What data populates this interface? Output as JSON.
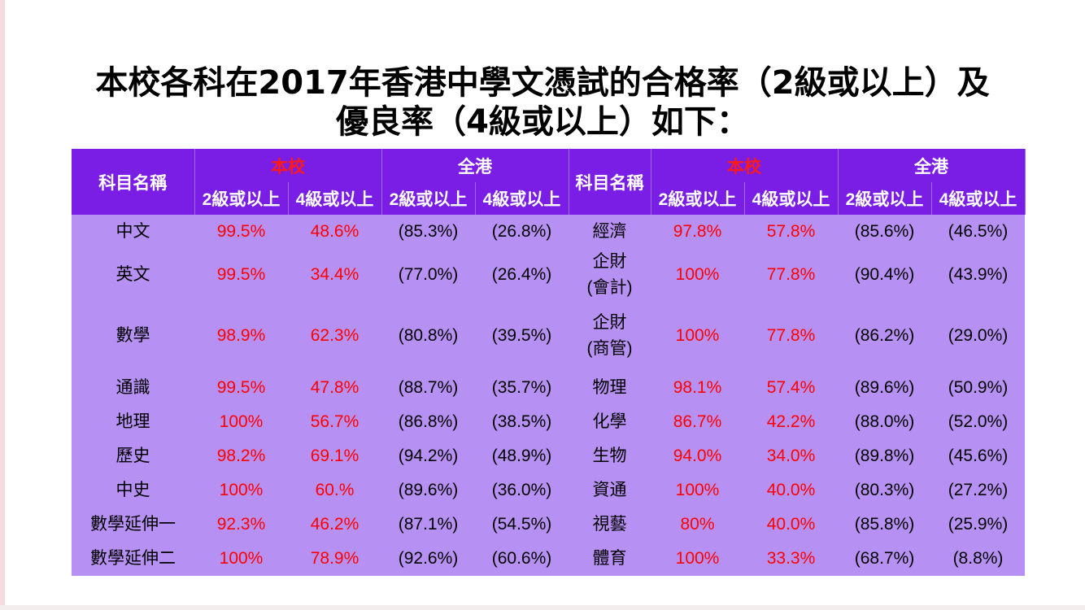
{
  "title": {
    "line1": "本校各科在2017年香港中學文憑試的合格率（2級或以上）及",
    "line2": "優良率（4級或以上）如下："
  },
  "table": {
    "subject_header": "科目名稱",
    "school_header": "本校",
    "hk_header": "全港",
    "level2_header": "2級或以上",
    "level4_header": "4級或以上",
    "rows": [
      {
        "s1": [
          "中文"
        ],
        "a": "99.5%",
        "b": "48.6%",
        "c": "(85.3%)",
        "d": "(26.8%)",
        "s2": [
          "經濟"
        ],
        "e": "97.8%",
        "f": "57.8%",
        "g": "(85.6%)",
        "h": "(46.5%)"
      },
      {
        "s1": [
          "英文"
        ],
        "a": "99.5%",
        "b": "34.4%",
        "c": "(77.0%)",
        "d": "(26.4%)",
        "s2": [
          "企財",
          "(會計)"
        ],
        "e": "100%",
        "f": "77.8%",
        "g": "(90.4%)",
        "h": "(43.9%)"
      },
      {
        "s1": [
          "數學"
        ],
        "a": "98.9%",
        "b": "62.3%",
        "c": "(80.8%)",
        "d": "(39.5%)",
        "s2": [
          "企財",
          "(商管)"
        ],
        "e": "100%",
        "f": "77.8%",
        "g": "(86.2%)",
        "h": "(29.0%)"
      },
      {
        "s1": [
          "通識"
        ],
        "a": "99.5%",
        "b": "47.8%",
        "c": "(88.7%)",
        "d": "(35.7%)",
        "s2": [
          "物理"
        ],
        "e": "98.1%",
        "f": "57.4%",
        "g": "(89.6%)",
        "h": "(50.9%)"
      },
      {
        "s1": [
          "地理"
        ],
        "a": "100%",
        "b": "56.7%",
        "c": "(86.8%)",
        "d": "(38.5%)",
        "s2": [
          "化學"
        ],
        "e": "86.7%",
        "f": "42.2%",
        "g": "(88.0%)",
        "h": "(52.0%)"
      },
      {
        "s1": [
          "歷史"
        ],
        "a": "98.2%",
        "b": "69.1%",
        "c": "(94.2%)",
        "d": "(48.9%)",
        "s2": [
          "生物"
        ],
        "e": "94.0%",
        "f": "34.0%",
        "g": "(89.8%)",
        "h": "(45.6%)"
      },
      {
        "s1": [
          "中史"
        ],
        "a": "100%",
        "b": "60.%",
        "c": "(89.6%)",
        "d": "(36.0%)",
        "s2": [
          "資通"
        ],
        "e": "100%",
        "f": "40.0%",
        "g": "(80.3%)",
        "h": "(27.2%)"
      },
      {
        "s1": [
          "數學延伸一"
        ],
        "a": "92.3%",
        "b": "46.2%",
        "c": "(87.1%)",
        "d": "(54.5%)",
        "s2": [
          "視藝"
        ],
        "e": "80%",
        "f": "40.0%",
        "g": "(85.8%)",
        "h": "(25.9%)"
      },
      {
        "s1": [
          "數學延伸二"
        ],
        "a": "100%",
        "b": "78.9%",
        "c": "(92.6%)",
        "d": "(60.6%)",
        "s2": [
          "體育"
        ],
        "e": "100%",
        "f": "33.3%",
        "g": "(68.7%)",
        "h": "(8.8%)"
      }
    ]
  },
  "colors": {
    "header_bg": "#7a1ee6",
    "body_bg": "#b690f2",
    "school_value": "#ff0000",
    "hk_value": "#000000"
  }
}
